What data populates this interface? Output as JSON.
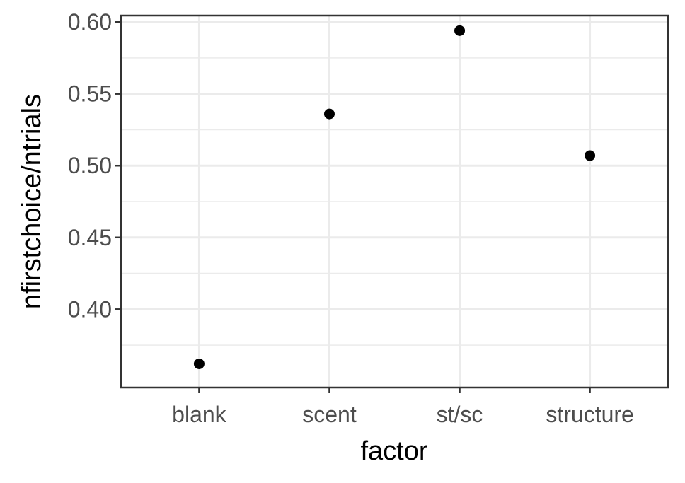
{
  "chart_data": {
    "type": "scatter",
    "categories": [
      "blank",
      "scent",
      "st/sc",
      "structure"
    ],
    "values": [
      0.362,
      0.536,
      0.594,
      0.507
    ],
    "xlabel": "factor",
    "ylabel": "nfirstchoice/ntrials",
    "ylim": [
      0.3455,
      0.6045
    ],
    "yticks": [
      0.4,
      0.45,
      0.5,
      0.55,
      0.6
    ],
    "ytick_labels": [
      "0.40",
      "0.45",
      "0.50",
      "0.55",
      "0.60"
    ],
    "grid": true,
    "legend": "none",
    "point_color": "#000000"
  }
}
